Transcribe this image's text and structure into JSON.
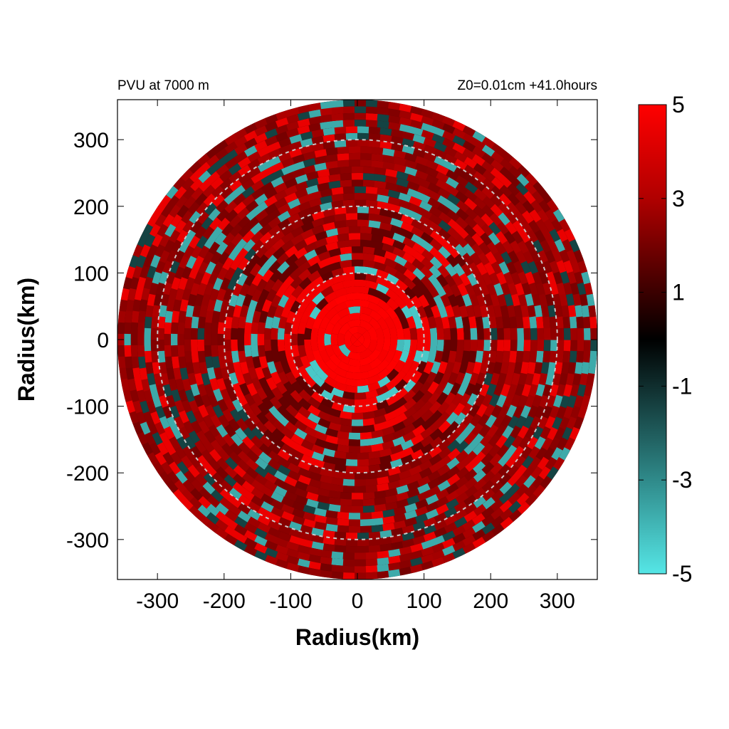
{
  "chart_data": {
    "type": "heatmap",
    "title_left": "PVU at  7000 m",
    "title_right": "Z0=0.01cm  +41.0hours",
    "xlabel": "Radius(km)",
    "ylabel": "Radius(km)",
    "xlim": [
      -360,
      360
    ],
    "ylim": [
      -360,
      360
    ],
    "x_ticks": [
      -300,
      -200,
      -100,
      0,
      100,
      200,
      300
    ],
    "y_ticks": [
      -300,
      -200,
      -100,
      0,
      100,
      200,
      300
    ],
    "domain_radius_km": 360,
    "reference_circles_km": [
      100,
      200,
      300
    ],
    "colorbar": {
      "range": [
        -5,
        5
      ],
      "ticks": [
        5,
        3,
        1,
        -1,
        -3,
        -5
      ],
      "colors": {
        "positive": "#ff0000",
        "zero": "#000000",
        "negative": "#55e6e6"
      }
    }
  }
}
